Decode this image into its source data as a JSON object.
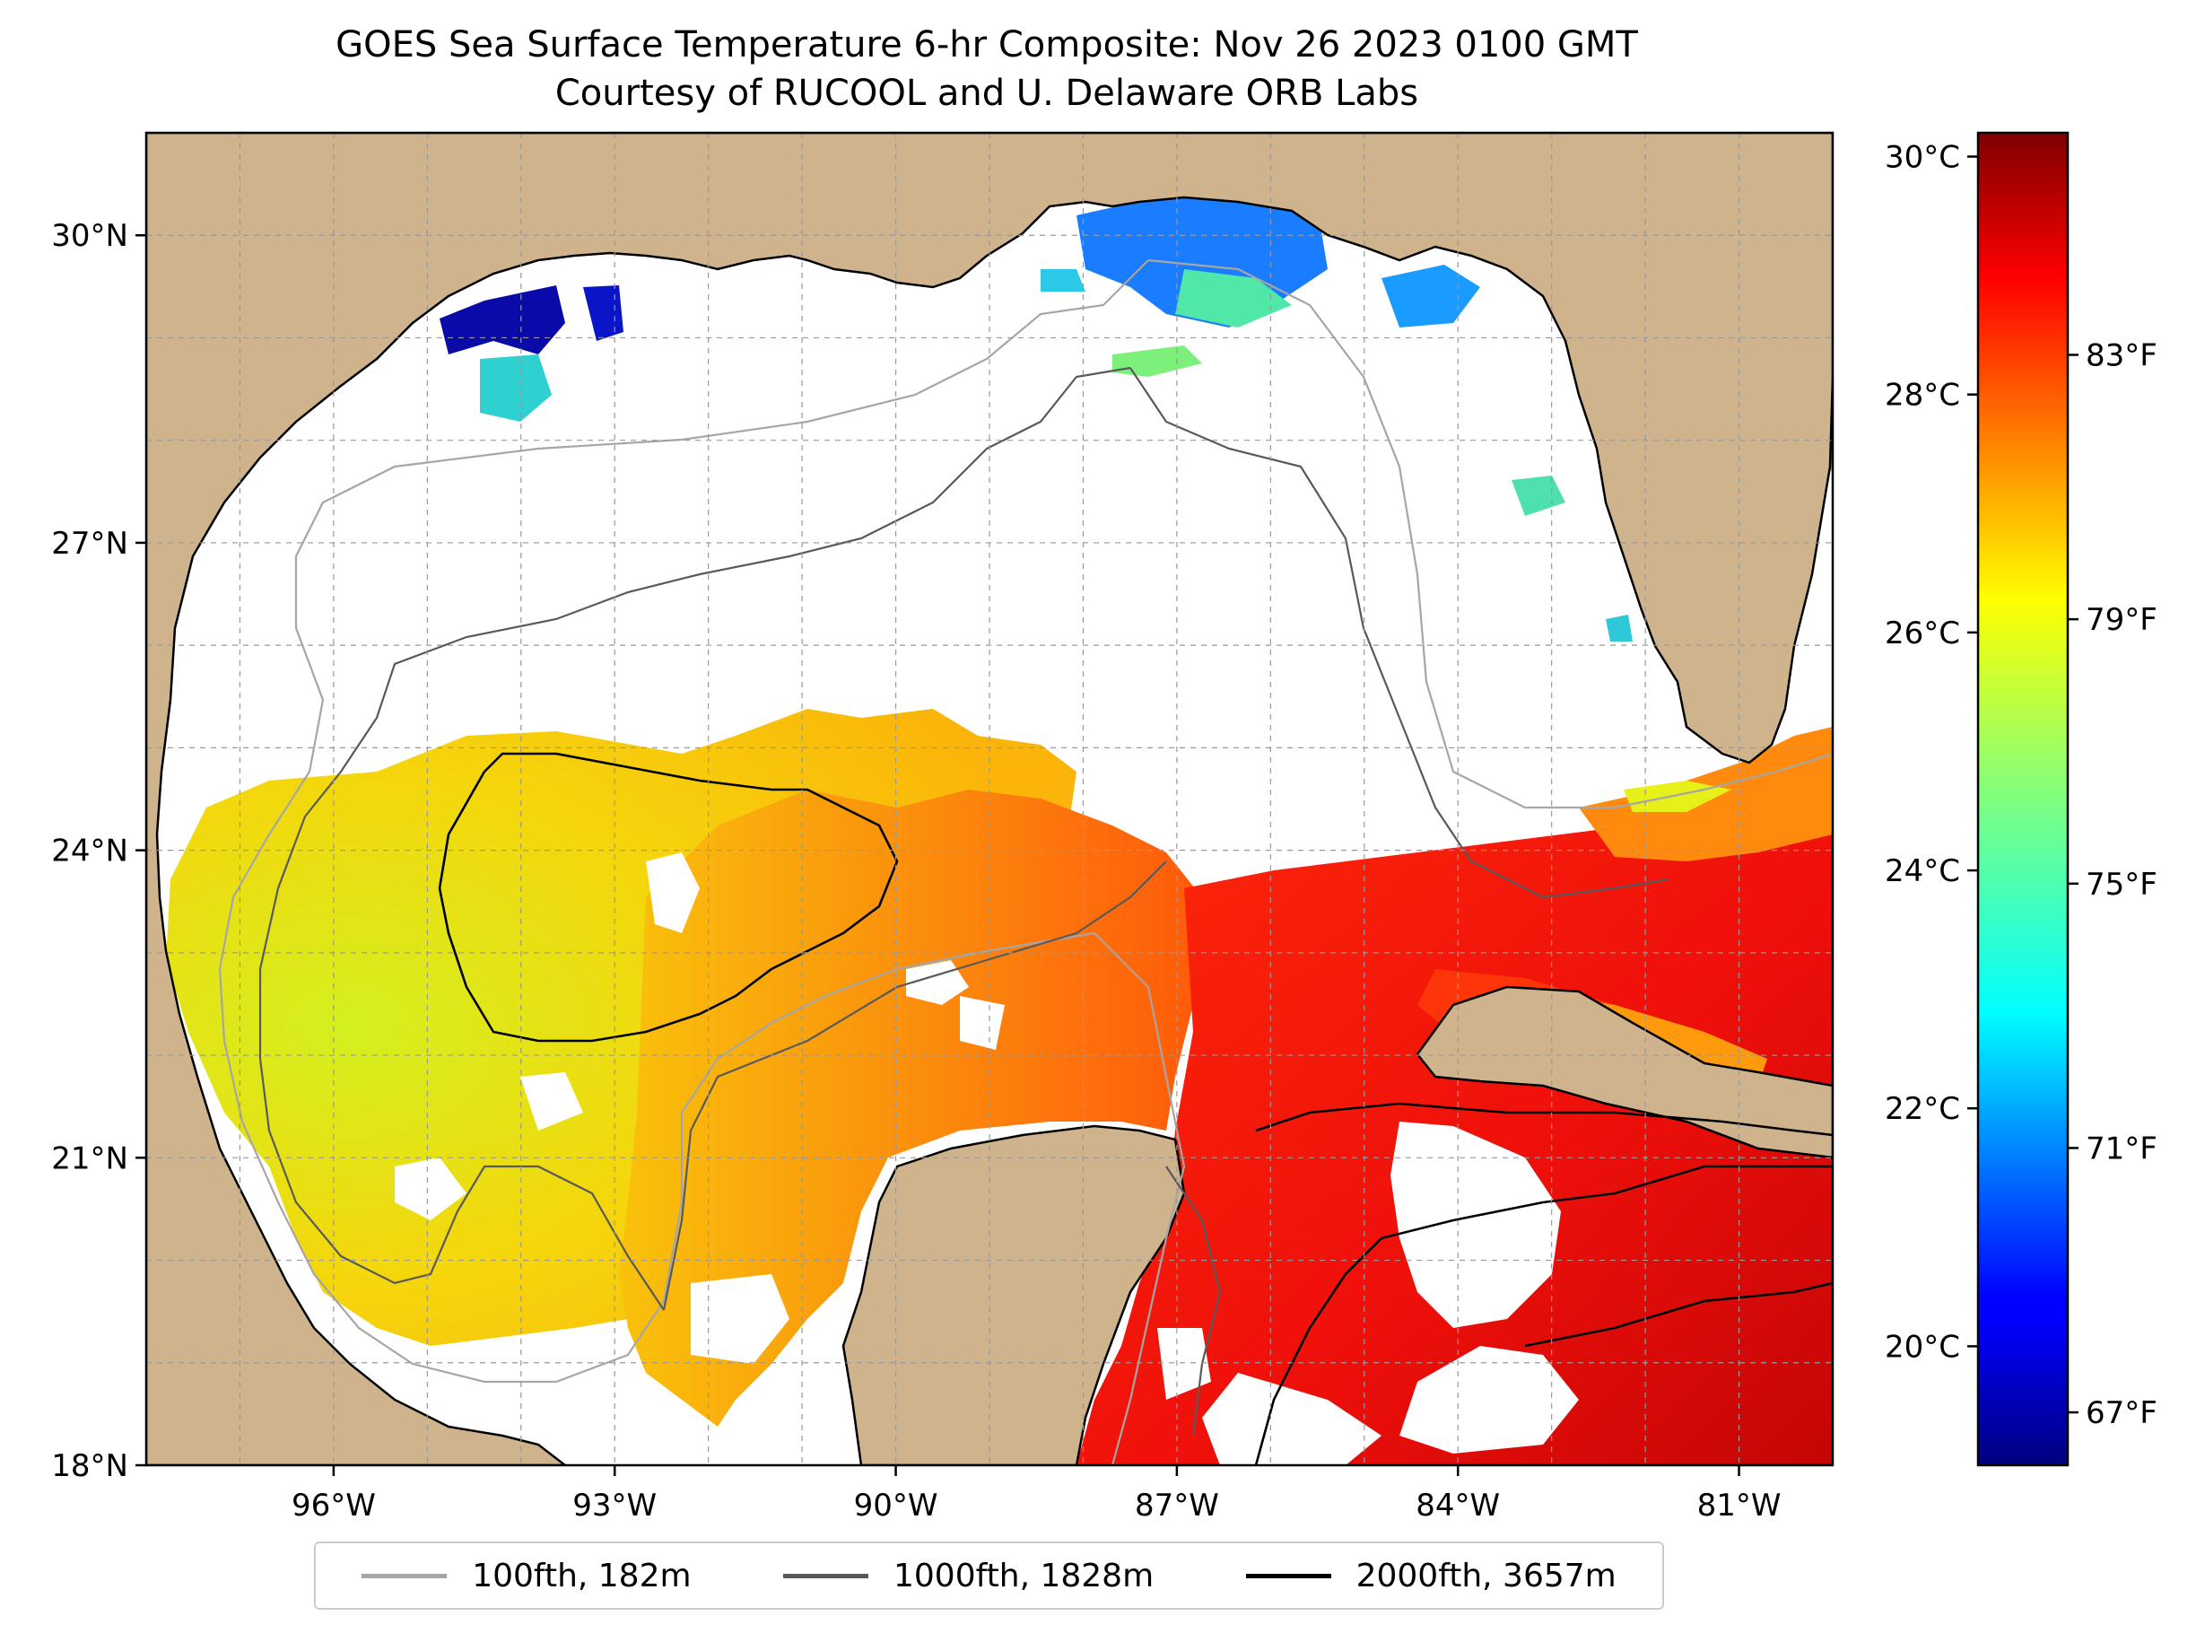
{
  "title": {
    "line1": "GOES Sea Surface Temperature 6-hr Composite: Nov 26 2023 0100 GMT",
    "line2": "Courtesy of RUCOOL and U. Delaware ORB Labs"
  },
  "map": {
    "projection": "Plate Carree",
    "lon_range": [
      -98,
      -80
    ],
    "lat_range": [
      18,
      31
    ],
    "land_color": "#cfb38c",
    "no_data_color": "#ffffff",
    "lat_ticks": [
      "30°N",
      "27°N",
      "24°N",
      "21°N",
      "18°N"
    ],
    "lon_ticks": [
      "96°W",
      "93°W",
      "90°W",
      "87°W",
      "84°W",
      "81°W"
    ],
    "grid": true
  },
  "colorbar": {
    "cmap": "jet",
    "celsius_range": [
      19,
      30.2
    ],
    "celsius_ticks": [
      "30°C",
      "28°C",
      "26°C",
      "24°C",
      "22°C",
      "20°C"
    ],
    "fahrenheit_ticks": [
      "83°F",
      "79°F",
      "75°F",
      "71°F",
      "67°F"
    ]
  },
  "legend": {
    "items": [
      {
        "label": "100fth, 182m",
        "color": "#a6a6a6"
      },
      {
        "label": "1000fth, 1828m",
        "color": "#595959"
      },
      {
        "label": "2000fth, 3657m",
        "color": "#000000"
      }
    ]
  }
}
